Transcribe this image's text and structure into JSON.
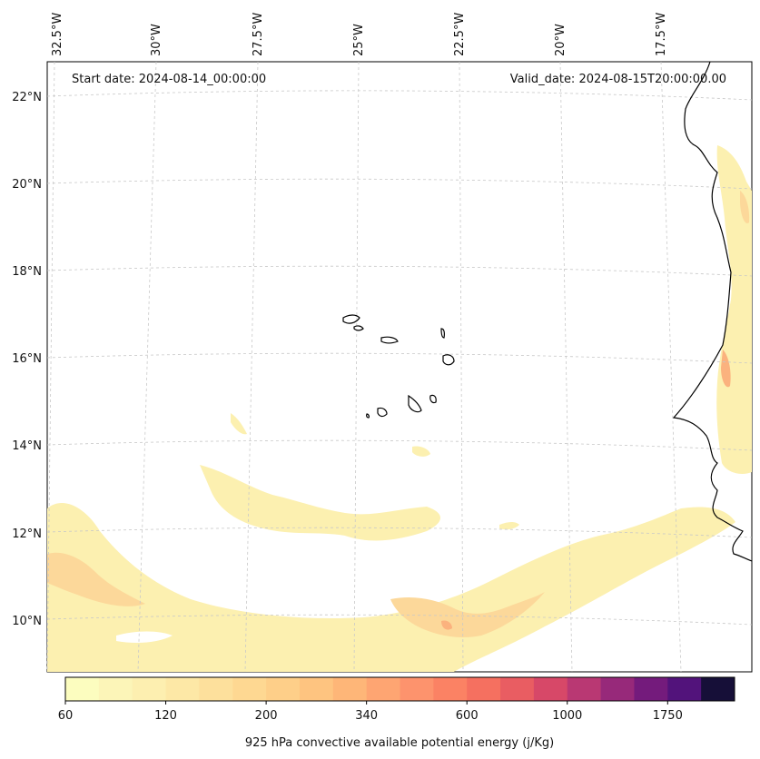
{
  "map": {
    "start_date": "Start date: 2024-08-14_00:00:00",
    "valid_date": "Valid_date: 2024-08-15T20:00:00.00",
    "lon_labels": [
      "32.5°W",
      "30°W",
      "27.5°W",
      "25°W",
      "22.5°W",
      "20°W",
      "17.5°W"
    ],
    "lat_labels": [
      "22°N",
      "20°N",
      "18°N",
      "16°N",
      "14°N",
      "12°N",
      "10°N"
    ],
    "field": "925 hPa convective available potential energy",
    "colors": {
      "coast": "#000000",
      "grid": "#c8c8c8",
      "low": "#fcf0b0",
      "mid": "#fcd89a",
      "high": "#fbb27e"
    }
  },
  "colorbar": {
    "label": "925 hPa convective available potential energy (j/Kg)",
    "tick_labels": [
      "60",
      "120",
      "200",
      "340",
      "600",
      "1000",
      "1750"
    ],
    "colors": [
      "#fcfdbf",
      "#fcf5b8",
      "#fdefb0",
      "#fde8a6",
      "#fde09c",
      "#fed892",
      "#fecf89",
      "#fec480",
      "#feb678",
      "#fea572",
      "#fd936d",
      "#fb8264",
      "#f57060",
      "#e95d62",
      "#d74868",
      "#b93873",
      "#97297a",
      "#741b7c",
      "#52137b",
      "#160f38"
    ]
  }
}
